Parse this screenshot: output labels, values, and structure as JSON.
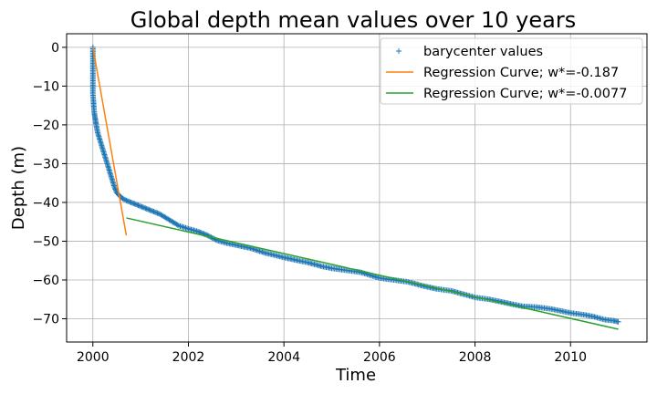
{
  "chart_data": {
    "type": "scatter",
    "title": "Global depth mean values over 10 years",
    "xlabel": "Time",
    "ylabel": "Depth (m)",
    "xlim": [
      1999.45,
      2011.6
    ],
    "ylim": [
      -76,
      3.5
    ],
    "xticks": [
      2000,
      2002,
      2004,
      2006,
      2008,
      2010
    ],
    "yticks": [
      0,
      -10,
      -20,
      -30,
      -40,
      -50,
      -60,
      -70
    ],
    "grid": true,
    "legend_position": "top-right",
    "series": [
      {
        "name": "barycenter values",
        "kind": "points",
        "marker": "+",
        "color": "#1f77b4",
        "points": [
          [
            2000.0,
            0.0
          ],
          [
            2000.0,
            -10.5
          ],
          [
            2000.0,
            -12
          ],
          [
            2000.01,
            -13.5
          ],
          [
            2000.02,
            -15.5
          ],
          [
            2000.03,
            -17
          ],
          [
            2000.05,
            -18.5
          ],
          [
            2000.07,
            -20
          ],
          [
            2000.1,
            -22
          ],
          [
            2000.15,
            -24
          ],
          [
            2000.2,
            -26
          ],
          [
            2000.25,
            -28
          ],
          [
            2000.3,
            -30
          ],
          [
            2000.35,
            -32
          ],
          [
            2000.4,
            -34
          ],
          [
            2000.45,
            -36
          ],
          [
            2000.5,
            -37.5
          ],
          [
            2000.6,
            -38.8
          ],
          [
            2000.7,
            -39.5
          ],
          [
            2000.8,
            -40
          ],
          [
            2001.0,
            -41
          ],
          [
            2001.2,
            -42
          ],
          [
            2001.4,
            -43
          ],
          [
            2001.6,
            -44.5
          ],
          [
            2001.8,
            -46
          ],
          [
            2002.0,
            -46.8
          ],
          [
            2002.2,
            -47.5
          ],
          [
            2002.4,
            -48.5
          ],
          [
            2002.6,
            -49.8
          ],
          [
            2002.8,
            -50.5
          ],
          [
            2003.0,
            -51
          ],
          [
            2003.3,
            -51.8
          ],
          [
            2003.6,
            -53
          ],
          [
            2004.0,
            -54.2
          ],
          [
            2004.3,
            -55
          ],
          [
            2004.5,
            -55.5
          ],
          [
            2004.8,
            -56.5
          ],
          [
            2005.0,
            -57
          ],
          [
            2005.3,
            -57.5
          ],
          [
            2005.6,
            -58
          ],
          [
            2006.0,
            -59.5
          ],
          [
            2006.3,
            -60
          ],
          [
            2006.6,
            -60.5
          ],
          [
            2006.9,
            -61.5
          ],
          [
            2007.2,
            -62.3
          ],
          [
            2007.5,
            -62.8
          ],
          [
            2007.8,
            -63.8
          ],
          [
            2008.0,
            -64.5
          ],
          [
            2008.3,
            -65
          ],
          [
            2008.5,
            -65.5
          ],
          [
            2008.8,
            -66.3
          ],
          [
            2009.0,
            -66.8
          ],
          [
            2009.3,
            -67
          ],
          [
            2009.6,
            -67.5
          ],
          [
            2010.0,
            -68.5
          ],
          [
            2010.3,
            -69
          ],
          [
            2010.5,
            -69.5
          ],
          [
            2010.7,
            -70.2
          ],
          [
            2010.9,
            -70.5
          ],
          [
            2011.0,
            -70.8
          ]
        ]
      },
      {
        "name": "Regression Curve; w*=-0.187",
        "kind": "line",
        "color": "#ff7f0e",
        "points": [
          [
            2000.0,
            0.0
          ],
          [
            2000.7,
            -48.5
          ]
        ]
      },
      {
        "name": "Regression Curve; w*=-0.0077",
        "kind": "line",
        "color": "#2ca02c",
        "points": [
          [
            2000.7,
            -44
          ],
          [
            2011.0,
            -72.7
          ]
        ]
      }
    ]
  }
}
